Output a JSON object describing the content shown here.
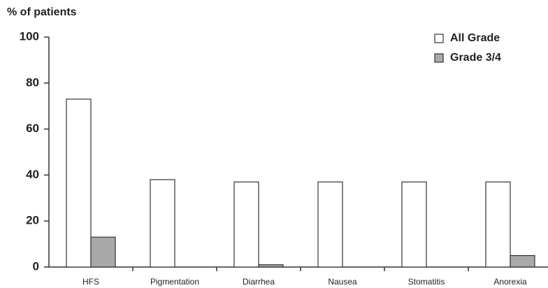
{
  "chart_data": {
    "type": "bar",
    "y_label": "% of patients",
    "categories": [
      "HFS",
      "Pigmentation",
      "Diarrhea",
      "Nausea",
      "Stomatitis",
      "Anorexia"
    ],
    "series": [
      {
        "name": "All Grade",
        "color": "#ffffff",
        "values": [
          73,
          38,
          37,
          37,
          37,
          37
        ]
      },
      {
        "name": "Grade 3/4",
        "color": "#a9a9a9",
        "values": [
          13,
          0,
          1,
          0,
          0,
          5
        ]
      }
    ],
    "ylim": [
      0,
      100
    ],
    "yticks": [
      0,
      20,
      40,
      60,
      80,
      100
    ],
    "legend": "top-right"
  }
}
